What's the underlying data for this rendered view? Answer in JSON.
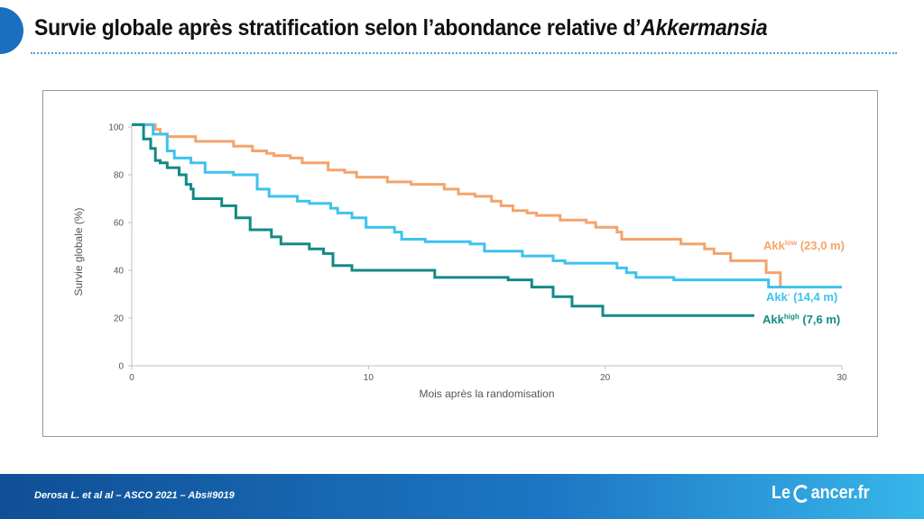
{
  "header": {
    "title_main": "Survie globale après stratification selon l’abondance relative d’",
    "title_italic": "Akkermansia"
  },
  "footer": {
    "reference": "Derosa L. et al al – ASCO 2021 – Abs#9019",
    "brand_before": "Le",
    "brand_after": "ancer.fr"
  },
  "colors": {
    "akk_low": "#f4a46c",
    "akk_neg": "#3cc3ee",
    "akk_high": "#138a86",
    "axis": "#bfbfbf",
    "corner": "#1a6fc0"
  },
  "chart_data": {
    "type": "line",
    "step": true,
    "xlabel": "Mois après la randomisation",
    "ylabel": "Survie globale (%)",
    "xlim": [
      0,
      30
    ],
    "ylim": [
      0,
      100
    ],
    "xticks": [
      0,
      10,
      20,
      30
    ],
    "yticks": [
      0,
      20,
      40,
      60,
      80,
      100
    ],
    "grid": false,
    "legend": "end-of-line labels",
    "series": [
      {
        "key": "low",
        "name_base": "Akk",
        "name_sup": "low",
        "name_suffix": " (23,0 m)",
        "color": "#f4a46c",
        "points": [
          [
            0,
            101
          ],
          [
            0.8,
            101
          ],
          [
            1,
            99
          ],
          [
            1.2,
            97
          ],
          [
            1.5,
            96
          ],
          [
            2.7,
            94
          ],
          [
            4.3,
            92
          ],
          [
            5.1,
            90
          ],
          [
            5.7,
            89
          ],
          [
            6,
            88
          ],
          [
            6.7,
            87
          ],
          [
            7.2,
            85
          ],
          [
            8.3,
            82
          ],
          [
            9,
            81
          ],
          [
            9.5,
            79
          ],
          [
            10.8,
            77
          ],
          [
            11.8,
            76
          ],
          [
            12.7,
            76
          ],
          [
            13.2,
            74
          ],
          [
            13.8,
            72
          ],
          [
            14.5,
            71
          ],
          [
            15.2,
            69
          ],
          [
            15.6,
            67
          ],
          [
            16.1,
            65
          ],
          [
            16.7,
            64
          ],
          [
            17.1,
            63
          ],
          [
            18.1,
            61
          ],
          [
            19.2,
            60
          ],
          [
            19.6,
            58
          ],
          [
            20.5,
            56
          ],
          [
            20.7,
            53
          ],
          [
            23.2,
            51
          ],
          [
            24.2,
            49
          ],
          [
            24.6,
            47
          ],
          [
            25.3,
            44
          ],
          [
            26.8,
            39
          ],
          [
            27.4,
            33
          ]
        ]
      },
      {
        "key": "neg",
        "name_base": "Akk",
        "name_sup": "-",
        "name_suffix": " (14,4 m)",
        "color": "#3cc3ee",
        "points": [
          [
            0,
            101
          ],
          [
            0.7,
            101
          ],
          [
            0.9,
            97
          ],
          [
            1.5,
            90
          ],
          [
            1.8,
            87
          ],
          [
            2.5,
            85
          ],
          [
            3.1,
            81
          ],
          [
            4.3,
            80
          ],
          [
            5.3,
            74
          ],
          [
            5.8,
            71
          ],
          [
            7,
            69
          ],
          [
            7.5,
            68
          ],
          [
            8.4,
            66
          ],
          [
            8.7,
            64
          ],
          [
            9.3,
            62
          ],
          [
            9.9,
            58
          ],
          [
            11.1,
            56
          ],
          [
            11.4,
            53
          ],
          [
            12.4,
            52
          ],
          [
            14.3,
            51
          ],
          [
            14.9,
            48
          ],
          [
            16.5,
            46
          ],
          [
            17.8,
            44
          ],
          [
            18.3,
            43
          ],
          [
            20.5,
            41
          ],
          [
            20.9,
            39
          ],
          [
            21.3,
            37
          ],
          [
            22.9,
            36
          ],
          [
            26.9,
            33
          ],
          [
            30,
            33
          ]
        ]
      },
      {
        "key": "high",
        "name_base": "Akk",
        "name_sup": "high",
        "name_suffix": " (7,6 m)",
        "color": "#138a86",
        "points": [
          [
            0,
            101
          ],
          [
            0.4,
            101
          ],
          [
            0.5,
            95
          ],
          [
            0.8,
            91
          ],
          [
            1,
            86
          ],
          [
            1.2,
            85
          ],
          [
            1.5,
            83
          ],
          [
            1.9,
            83
          ],
          [
            2,
            80
          ],
          [
            2.3,
            76
          ],
          [
            2.5,
            74
          ],
          [
            2.6,
            70
          ],
          [
            3.8,
            67
          ],
          [
            4.4,
            62
          ],
          [
            5,
            57
          ],
          [
            5.9,
            54
          ],
          [
            6.3,
            51
          ],
          [
            7.5,
            49
          ],
          [
            8.1,
            47
          ],
          [
            8.5,
            42
          ],
          [
            9.3,
            40
          ],
          [
            12.8,
            37
          ],
          [
            15.9,
            36
          ],
          [
            16.9,
            33
          ],
          [
            17.8,
            29
          ],
          [
            18.6,
            25
          ],
          [
            19.9,
            21
          ],
          [
            26.3,
            21
          ]
        ]
      }
    ]
  }
}
